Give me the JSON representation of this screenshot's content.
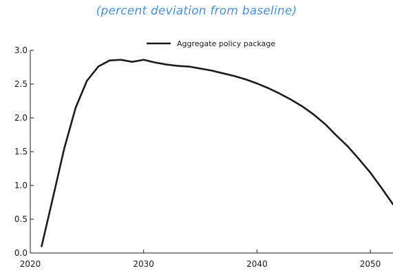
{
  "colors": {
    "subtitle": "#4a8fd4",
    "line": "#1a1a1a",
    "axis": "#1a1a1a"
  },
  "chart_data": {
    "type": "line",
    "subtitle": "(percent deviation from baseline)",
    "xlabel": "",
    "ylabel": "",
    "xlim": [
      2020,
      2052
    ],
    "ylim": [
      0,
      3.0
    ],
    "xticks": [
      2020,
      2030,
      2040,
      2050
    ],
    "yticks": [
      0.0,
      0.5,
      1.0,
      1.5,
      2.0,
      2.5,
      3.0
    ],
    "ytick_labels": [
      "0.0",
      "0.5",
      "1.0",
      "1.5",
      "2.0",
      "2.5",
      "3.0"
    ],
    "grid": false,
    "legend_position": "top-center",
    "series": [
      {
        "name": "Aggregate policy package",
        "x": [
          2021,
          2022,
          2023,
          2024,
          2025,
          2026,
          2027,
          2028,
          2029,
          2030,
          2031,
          2032,
          2033,
          2034,
          2035,
          2036,
          2037,
          2038,
          2039,
          2040,
          2041,
          2042,
          2043,
          2044,
          2045,
          2046,
          2047,
          2048,
          2049,
          2050,
          2051,
          2052
        ],
        "values": [
          0.1,
          0.82,
          1.55,
          2.15,
          2.55,
          2.76,
          2.85,
          2.86,
          2.83,
          2.86,
          2.82,
          2.79,
          2.77,
          2.76,
          2.73,
          2.7,
          2.66,
          2.62,
          2.57,
          2.51,
          2.44,
          2.36,
          2.27,
          2.17,
          2.05,
          1.91,
          1.74,
          1.58,
          1.39,
          1.19,
          0.96,
          0.72
        ]
      }
    ]
  }
}
